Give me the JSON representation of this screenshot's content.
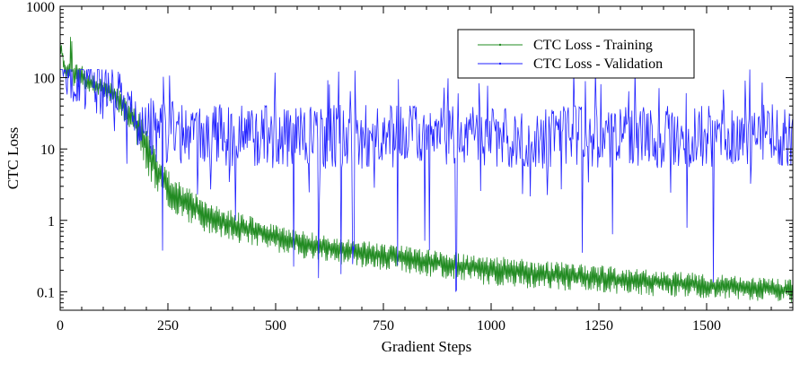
{
  "chart_data": {
    "type": "line",
    "title": "",
    "xlabel": "Gradient Steps",
    "ylabel": "CTC Loss",
    "yscale": "log",
    "xlim": [
      0,
      1700
    ],
    "ylim": [
      0.055,
      1000
    ],
    "x_ticks": [
      0,
      250,
      500,
      750,
      1000,
      1250,
      1500
    ],
    "x_tick_labels": [
      "0",
      "250",
      "500",
      "750",
      "1000",
      "1250",
      "1500"
    ],
    "y_ticks": [
      0.1,
      1,
      10,
      100,
      1000
    ],
    "y_tick_labels": [
      "0.1",
      "1",
      "10",
      "100",
      "1000"
    ],
    "grid": false,
    "legend_position": "top-right",
    "series": [
      {
        "name": "CTC Loss - Training",
        "color": "#228B22",
        "noise": "high-frequency oscillation between upper and lower envelope",
        "x": [
          0,
          5,
          10,
          15,
          20,
          25,
          30,
          40,
          50,
          60,
          75,
          90,
          100,
          110,
          125,
          140,
          150,
          160,
          175,
          190,
          200,
          210,
          225,
          240,
          250,
          275,
          300,
          325,
          350,
          375,
          400,
          450,
          500,
          550,
          600,
          650,
          700,
          750,
          800,
          850,
          900,
          950,
          1000,
          1100,
          1200,
          1300,
          1400,
          1500,
          1600,
          1700
        ],
        "upper": [
          400,
          300,
          200,
          150,
          160,
          700,
          140,
          170,
          150,
          130,
          110,
          100,
          95,
          90,
          85,
          65,
          55,
          45,
          38,
          30,
          20,
          14,
          9,
          6.5,
          5,
          3.5,
          2.8,
          2.2,
          1.8,
          1.5,
          1.4,
          1.1,
          0.9,
          0.75,
          0.65,
          0.58,
          0.52,
          0.48,
          0.44,
          0.4,
          0.37,
          0.34,
          0.32,
          0.28,
          0.25,
          0.22,
          0.2,
          0.18,
          0.16,
          0.15
        ],
        "lower": [
          200,
          150,
          100,
          90,
          80,
          80,
          75,
          70,
          70,
          65,
          60,
          55,
          52,
          48,
          40,
          30,
          22,
          18,
          12,
          8,
          5,
          3.5,
          2.5,
          1.8,
          1.5,
          1.1,
          0.9,
          0.75,
          0.62,
          0.55,
          0.5,
          0.42,
          0.36,
          0.3,
          0.27,
          0.24,
          0.22,
          0.2,
          0.18,
          0.16,
          0.15,
          0.13,
          0.12,
          0.11,
          0.1,
          0.09,
          0.085,
          0.08,
          0.075,
          0.07
        ]
      },
      {
        "name": "CTC Loss - Validation",
        "color": "#2222FF",
        "noise": "noisy fluctuation around baseline with occasional spikes and dips",
        "x": [
          0,
          5,
          10,
          20,
          30,
          40,
          50,
          60,
          75,
          90,
          100,
          125,
          150,
          175,
          200,
          225,
          250,
          300,
          400,
          500,
          600,
          700,
          800,
          900,
          1000,
          1100,
          1200,
          1300,
          1400,
          1500,
          1600,
          1700
        ],
        "baseline": [
          300,
          250,
          180,
          140,
          120,
          110,
          100,
          95,
          90,
          80,
          70,
          50,
          35,
          25,
          20,
          18,
          17,
          16,
          15,
          15,
          15,
          15,
          15,
          15,
          15,
          15,
          15,
          15,
          15,
          15,
          15,
          15
        ],
        "spread_max": 130,
        "spread_min": 0.06
      }
    ]
  }
}
